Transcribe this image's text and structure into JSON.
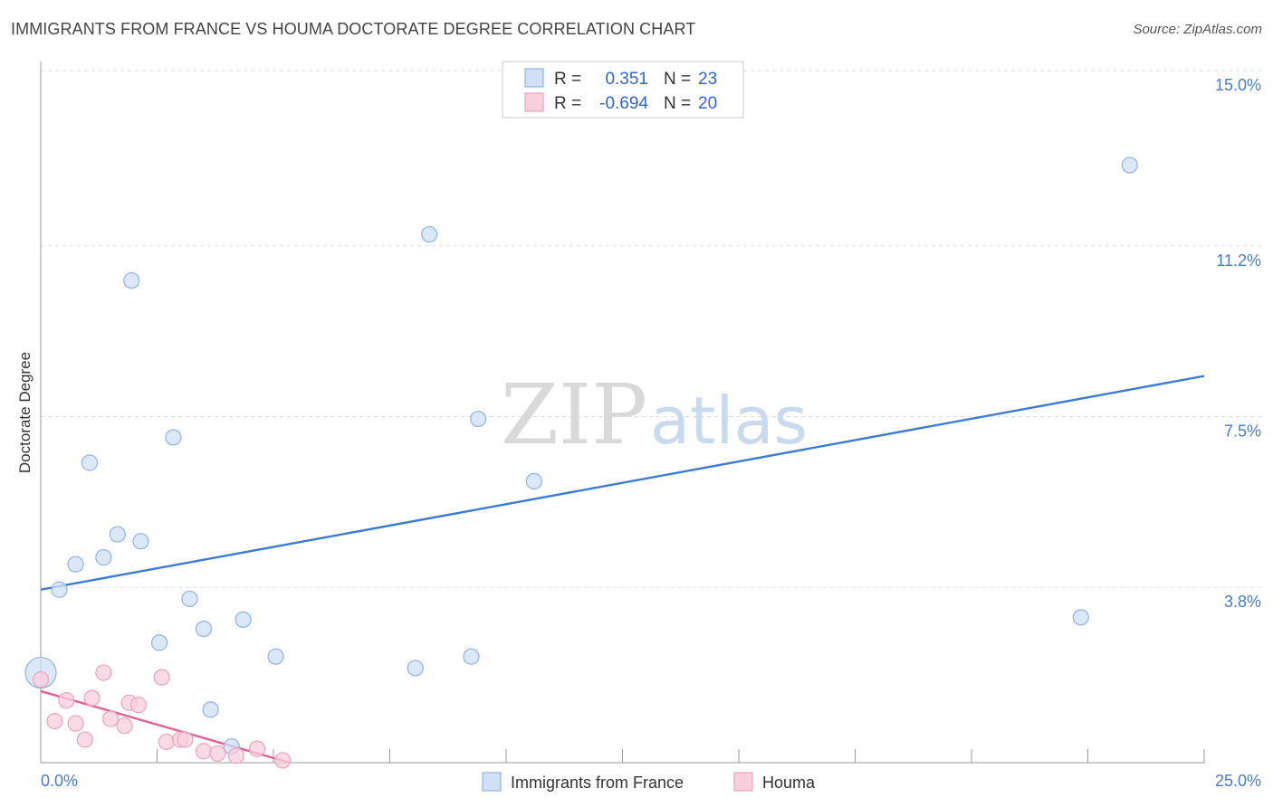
{
  "title": "IMMIGRANTS FROM FRANCE VS HOUMA DOCTORATE DEGREE CORRELATION CHART",
  "source": "Source: ZipAtlas.com",
  "watermark": {
    "zip": "ZIP",
    "atlas": "atlas"
  },
  "colors": {
    "blue": "#3a7bd5",
    "blue_fill": "#cfe0f7",
    "pink": "#e0609a",
    "pink_fill": "#f8cfdc",
    "tick": "#4a7cc9"
  },
  "legend": {
    "series1": {
      "r_label": "R =",
      "r_value": "0.351",
      "n_label": "N =",
      "n_value": "23"
    },
    "series2": {
      "r_label": "R =",
      "r_value": "-0.694",
      "n_label": "N =",
      "n_value": "20"
    }
  },
  "chart_data": {
    "type": "scatter",
    "title": "IMMIGRANTS FROM FRANCE VS HOUMA DOCTORATE DEGREE CORRELATION CHART",
    "xlabel": "",
    "ylabel": "Doctorate Degree",
    "xlim": [
      0,
      25
    ],
    "ylim": [
      0,
      15
    ],
    "x_tick_labels": [
      "0.0%",
      "25.0%"
    ],
    "y_ticks": [
      3.8,
      7.5,
      11.2,
      15.0
    ],
    "y_tick_labels": [
      "3.8%",
      "7.5%",
      "11.2%",
      "15.0%"
    ],
    "legend_position": "top-center",
    "series": [
      {
        "name": "Immigrants from France",
        "color": "#3a7bd5",
        "trend": {
          "x": [
            0,
            25
          ],
          "y": [
            3.75,
            8.38
          ]
        },
        "points": [
          {
            "x": 0.0,
            "y": 1.95,
            "large": true
          },
          {
            "x": 0.4,
            "y": 3.75
          },
          {
            "x": 0.75,
            "y": 4.3
          },
          {
            "x": 1.05,
            "y": 6.5
          },
          {
            "x": 1.35,
            "y": 4.45
          },
          {
            "x": 1.65,
            "y": 4.95
          },
          {
            "x": 1.95,
            "y": 10.45
          },
          {
            "x": 2.15,
            "y": 4.8
          },
          {
            "x": 2.55,
            "y": 2.6
          },
          {
            "x": 2.85,
            "y": 7.05
          },
          {
            "x": 3.2,
            "y": 3.55
          },
          {
            "x": 3.5,
            "y": 2.9
          },
          {
            "x": 3.65,
            "y": 1.15
          },
          {
            "x": 4.1,
            "y": 0.35
          },
          {
            "x": 4.35,
            "y": 3.1
          },
          {
            "x": 5.05,
            "y": 2.3
          },
          {
            "x": 8.05,
            "y": 2.05
          },
          {
            "x": 8.35,
            "y": 11.45
          },
          {
            "x": 9.25,
            "y": 2.3
          },
          {
            "x": 9.4,
            "y": 7.45
          },
          {
            "x": 10.6,
            "y": 6.1
          },
          {
            "x": 22.35,
            "y": 3.15
          },
          {
            "x": 23.4,
            "y": 12.95
          }
        ]
      },
      {
        "name": "Houma",
        "color": "#e0609a",
        "trend": {
          "x": [
            0,
            5.35
          ],
          "y": [
            1.55,
            0.0
          ]
        },
        "points": [
          {
            "x": 0.0,
            "y": 1.8
          },
          {
            "x": 0.3,
            "y": 0.9
          },
          {
            "x": 0.55,
            "y": 1.35
          },
          {
            "x": 0.75,
            "y": 0.85
          },
          {
            "x": 0.95,
            "y": 0.5
          },
          {
            "x": 1.1,
            "y": 1.4
          },
          {
            "x": 1.35,
            "y": 1.95
          },
          {
            "x": 1.5,
            "y": 0.95
          },
          {
            "x": 1.8,
            "y": 0.8
          },
          {
            "x": 1.9,
            "y": 1.3
          },
          {
            "x": 2.1,
            "y": 1.25
          },
          {
            "x": 2.6,
            "y": 1.85
          },
          {
            "x": 2.7,
            "y": 0.45
          },
          {
            "x": 3.0,
            "y": 0.5
          },
          {
            "x": 3.1,
            "y": 0.5
          },
          {
            "x": 3.5,
            "y": 0.25
          },
          {
            "x": 3.8,
            "y": 0.2
          },
          {
            "x": 4.2,
            "y": 0.15
          },
          {
            "x": 4.65,
            "y": 0.3
          },
          {
            "x": 5.2,
            "y": 0.05
          }
        ]
      }
    ]
  }
}
